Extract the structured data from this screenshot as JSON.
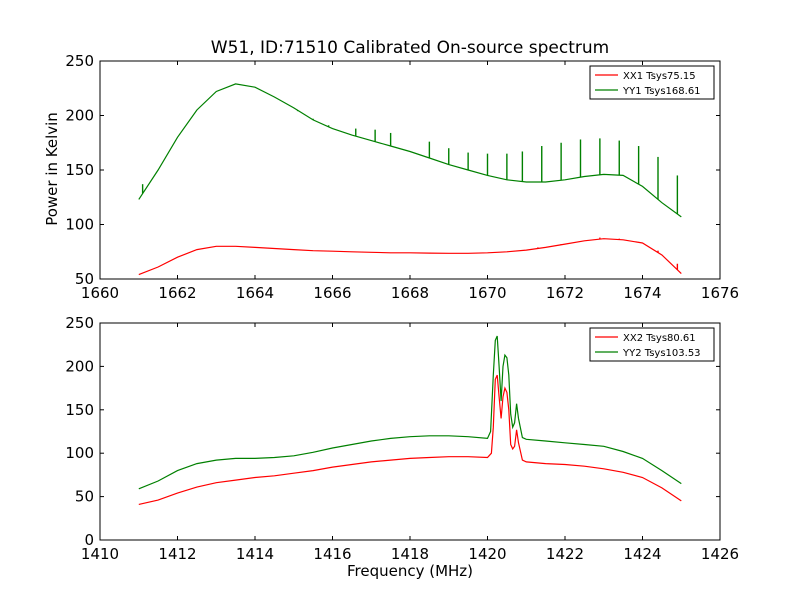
{
  "figure": {
    "title": "W51, ID:71510 Calibrated On-source spectrum",
    "ylabel": "Power in Kelvin",
    "xlabel": "Frequency (MHz)"
  },
  "chart_data": [
    {
      "type": "line",
      "xlim": [
        1660,
        1676
      ],
      "ylim": [
        50,
        250
      ],
      "xticks": [
        1660,
        1662,
        1664,
        1666,
        1668,
        1670,
        1672,
        1674,
        1676
      ],
      "yticks": [
        50,
        100,
        150,
        200,
        250
      ],
      "legend_position": "top-right",
      "grid": false,
      "series": [
        {
          "name": "XX1 Tsys75.15",
          "color": "#ff0000",
          "points": [
            [
              1661,
              54
            ],
            [
              1661.5,
              61
            ],
            [
              1662,
              70
            ],
            [
              1662.5,
              77
            ],
            [
              1663,
              80
            ],
            [
              1663.5,
              80
            ],
            [
              1664,
              79
            ],
            [
              1664.5,
              78
            ],
            [
              1665,
              77
            ],
            [
              1665.5,
              76
            ],
            [
              1666,
              75.5
            ],
            [
              1666.5,
              75
            ],
            [
              1667,
              74.5
            ],
            [
              1667.5,
              74
            ],
            [
              1668,
              74
            ],
            [
              1668.5,
              73.8
            ],
            [
              1669,
              73.6
            ],
            [
              1669.5,
              73.6
            ],
            [
              1670,
              74
            ],
            [
              1670.5,
              75
            ],
            [
              1671,
              76.5
            ],
            [
              1671.5,
              79
            ],
            [
              1672,
              82
            ],
            [
              1672.5,
              85
            ],
            [
              1673,
              87
            ],
            [
              1673.5,
              86
            ],
            [
              1674,
              83
            ],
            [
              1674.5,
              72
            ],
            [
              1675,
              55
            ]
          ],
          "spikes": [
            [
              1665.2,
              77
            ],
            [
              1667.1,
              74.5
            ],
            [
              1670.4,
              75
            ],
            [
              1670.8,
              76
            ],
            [
              1671.3,
              79
            ],
            [
              1671.9,
              82
            ],
            [
              1672.4,
              84
            ],
            [
              1672.9,
              88
            ],
            [
              1673.4,
              87
            ],
            [
              1673.9,
              84
            ],
            [
              1674.4,
              76
            ],
            [
              1674.9,
              64
            ]
          ]
        },
        {
          "name": "YY1 Tsys168.61",
          "color": "#008000",
          "points": [
            [
              1661,
              123
            ],
            [
              1661.5,
              150
            ],
            [
              1662,
              180
            ],
            [
              1662.5,
              205
            ],
            [
              1663,
              222
            ],
            [
              1663.5,
              229
            ],
            [
              1664,
              226
            ],
            [
              1664.5,
              217
            ],
            [
              1665,
              207
            ],
            [
              1665.5,
              196
            ],
            [
              1666,
              188
            ],
            [
              1666.5,
              182
            ],
            [
              1667,
              177
            ],
            [
              1667.5,
              172
            ],
            [
              1668,
              167
            ],
            [
              1668.5,
              161
            ],
            [
              1669,
              155
            ],
            [
              1669.5,
              150
            ],
            [
              1670,
              145
            ],
            [
              1670.5,
              141
            ],
            [
              1671,
              139
            ],
            [
              1671.5,
              139
            ],
            [
              1672,
              141
            ],
            [
              1672.5,
              144
            ],
            [
              1673,
              146
            ],
            [
              1673.5,
              145
            ],
            [
              1674,
              135
            ],
            [
              1674.5,
              120
            ],
            [
              1675,
              107
            ]
          ],
          "spikes": [
            [
              1661.1,
              137
            ],
            [
              1665.1,
              204
            ],
            [
              1665.5,
              197
            ],
            [
              1665.9,
              191
            ],
            [
              1666.6,
              188
            ],
            [
              1667.1,
              187
            ],
            [
              1667.5,
              184
            ],
            [
              1668.5,
              176
            ],
            [
              1669.0,
              170
            ],
            [
              1669.5,
              166
            ],
            [
              1670.0,
              165
            ],
            [
              1670.5,
              165
            ],
            [
              1670.9,
              167
            ],
            [
              1671.4,
              172
            ],
            [
              1671.9,
              175
            ],
            [
              1672.4,
              178
            ],
            [
              1672.9,
              179
            ],
            [
              1673.4,
              177
            ],
            [
              1673.9,
              172
            ],
            [
              1674.4,
              162
            ],
            [
              1674.9,
              145
            ]
          ]
        }
      ]
    },
    {
      "type": "line",
      "xlim": [
        1410,
        1426
      ],
      "ylim": [
        0,
        250
      ],
      "xticks": [
        1410,
        1412,
        1414,
        1416,
        1418,
        1420,
        1422,
        1424,
        1426
      ],
      "yticks": [
        0,
        50,
        100,
        150,
        200,
        250
      ],
      "legend_position": "top-right",
      "grid": false,
      "series": [
        {
          "name": "XX2 Tsys80.61",
          "color": "#ff0000",
          "points": [
            [
              1411,
              41
            ],
            [
              1411.5,
              46
            ],
            [
              1412,
              54
            ],
            [
              1412.5,
              61
            ],
            [
              1413,
              66
            ],
            [
              1413.5,
              69
            ],
            [
              1414,
              72
            ],
            [
              1414.5,
              74
            ],
            [
              1415,
              77
            ],
            [
              1415.5,
              80
            ],
            [
              1416,
              84
            ],
            [
              1416.5,
              87
            ],
            [
              1417,
              90
            ],
            [
              1417.5,
              92
            ],
            [
              1418,
              94
            ],
            [
              1418.5,
              95
            ],
            [
              1419,
              96
            ],
            [
              1419.5,
              96
            ],
            [
              1420,
              95
            ],
            [
              1420.1,
              100
            ],
            [
              1420.15,
              130
            ],
            [
              1420.2,
              185
            ],
            [
              1420.25,
              190
            ],
            [
              1420.3,
              165
            ],
            [
              1420.35,
              140
            ],
            [
              1420.4,
              165
            ],
            [
              1420.45,
              175
            ],
            [
              1420.5,
              170
            ],
            [
              1420.55,
              150
            ],
            [
              1420.6,
              110
            ],
            [
              1420.65,
              105
            ],
            [
              1420.7,
              108
            ],
            [
              1420.75,
              127
            ],
            [
              1420.8,
              112
            ],
            [
              1420.9,
              92
            ],
            [
              1421,
              90
            ],
            [
              1421.5,
              88
            ],
            [
              1422,
              87
            ],
            [
              1422.5,
              85
            ],
            [
              1423,
              82
            ],
            [
              1423.5,
              78
            ],
            [
              1424,
              72
            ],
            [
              1424.5,
              60
            ],
            [
              1425,
              45
            ]
          ]
        },
        {
          "name": "YY2 Tsys103.53",
          "color": "#008000",
          "points": [
            [
              1411,
              59
            ],
            [
              1411.5,
              68
            ],
            [
              1412,
              80
            ],
            [
              1412.5,
              88
            ],
            [
              1413,
              92
            ],
            [
              1413.5,
              94
            ],
            [
              1414,
              94
            ],
            [
              1414.5,
              95
            ],
            [
              1415,
              97
            ],
            [
              1415.5,
              101
            ],
            [
              1416,
              106
            ],
            [
              1416.5,
              110
            ],
            [
              1417,
              114
            ],
            [
              1417.5,
              117
            ],
            [
              1418,
              119
            ],
            [
              1418.5,
              120
            ],
            [
              1419,
              120
            ],
            [
              1419.5,
              119
            ],
            [
              1420,
              117
            ],
            [
              1420.08,
              125
            ],
            [
              1420.15,
              190
            ],
            [
              1420.2,
              230
            ],
            [
              1420.25,
              235
            ],
            [
              1420.3,
              200
            ],
            [
              1420.35,
              160
            ],
            [
              1420.4,
              200
            ],
            [
              1420.45,
              213
            ],
            [
              1420.5,
              210
            ],
            [
              1420.55,
              190
            ],
            [
              1420.6,
              145
            ],
            [
              1420.65,
              130
            ],
            [
              1420.7,
              135
            ],
            [
              1420.75,
              157
            ],
            [
              1420.8,
              140
            ],
            [
              1420.9,
              118
            ],
            [
              1421,
              116
            ],
            [
              1421.5,
              114
            ],
            [
              1422,
              112
            ],
            [
              1422.5,
              110
            ],
            [
              1423,
              108
            ],
            [
              1423.5,
              102
            ],
            [
              1424,
              94
            ],
            [
              1424.5,
              80
            ],
            [
              1425,
              65
            ]
          ]
        }
      ]
    }
  ]
}
